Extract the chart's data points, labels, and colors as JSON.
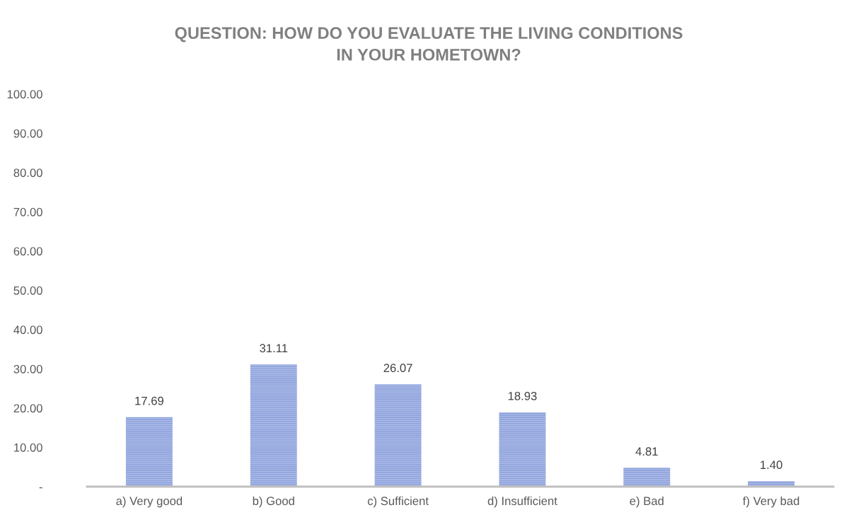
{
  "chart_data": {
    "type": "bar",
    "title": "QUESTION: HOW DO YOU EVALUATE THE LIVING CONDITIONS\nIN YOUR HOMETOWN?",
    "categories": [
      "a) Very good",
      "b) Good",
      "c) Sufficient",
      "d) Insufficient",
      "e) Bad",
      "f) Very bad"
    ],
    "values": [
      17.69,
      31.11,
      26.07,
      18.93,
      4.81,
      1.4
    ],
    "value_labels": [
      "17.69",
      "31.11",
      "26.07",
      "18.93",
      "4.81",
      "1.40"
    ],
    "color": "#aebde8",
    "ylim": [
      0,
      100
    ],
    "yticks": [
      {
        "value": 0,
        "label": "-"
      },
      {
        "value": 10,
        "label": "10.00"
      },
      {
        "value": 20,
        "label": "20.00"
      },
      {
        "value": 30,
        "label": "30.00"
      },
      {
        "value": 40,
        "label": "40.00"
      },
      {
        "value": 50,
        "label": "50.00"
      },
      {
        "value": 60,
        "label": "60.00"
      },
      {
        "value": 70,
        "label": "70.00"
      },
      {
        "value": 80,
        "label": "80.00"
      },
      {
        "value": 90,
        "label": "90.00"
      },
      {
        "value": 100,
        "label": "100.00"
      }
    ],
    "grid": false,
    "legend": false
  }
}
